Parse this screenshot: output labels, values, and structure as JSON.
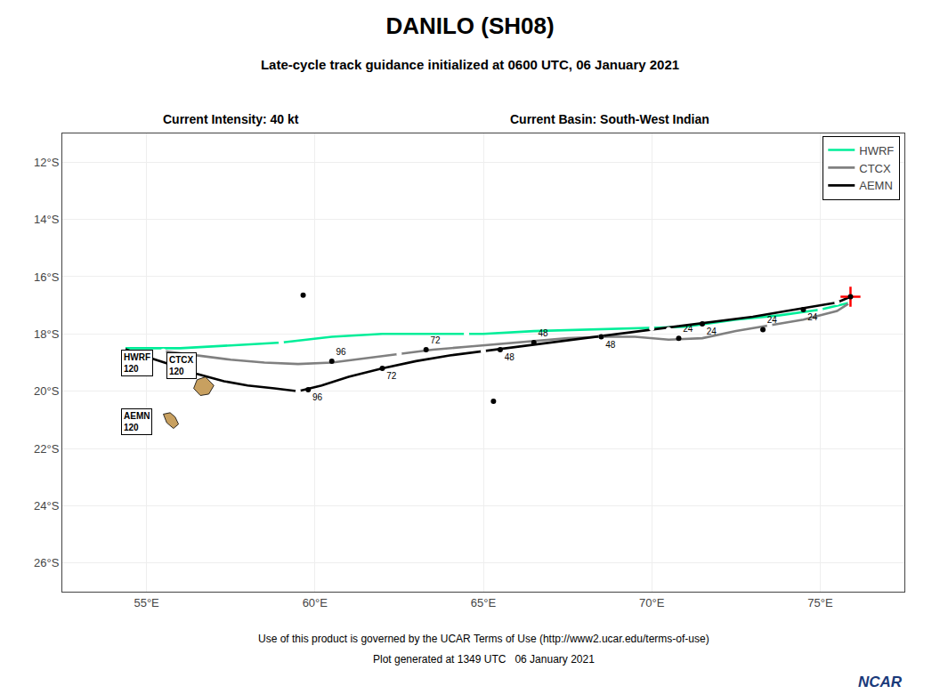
{
  "chart_data": {
    "type": "line",
    "title": "DANILO (SH08)",
    "subtitle": "Late-cycle track guidance initialized at 0600 UTC, 06 January 2021",
    "annotations": [
      "Current Intensity: 40 kt",
      "Current Basin: South-West Indian",
      "Use of this product is governed by the UCAR Terms of Use (http://www2.ucar.edu/terms-of-use)",
      "Plot generated at 1349 UTC   06 January 2021",
      {
        "text": "NCAR",
        "color": "#1a3a7a"
      },
      {
        "text": "HWRF\n120",
        "x": 54.25,
        "y": -18.55
      },
      {
        "text": "CTCX\n120",
        "x": 55.6,
        "y": -18.65
      },
      {
        "text": "AEMN\n120",
        "x": 54.25,
        "y": -20.6
      }
    ],
    "xlim": [
      52.5,
      77.5
    ],
    "ylim": [
      -27.0,
      -11.0
    ],
    "xticks": [
      {
        "value": 55,
        "label": "55°E"
      },
      {
        "value": 60,
        "label": "60°E"
      },
      {
        "value": 65,
        "label": "65°E"
      },
      {
        "value": 70,
        "label": "70°E"
      },
      {
        "value": 75,
        "label": "75°E"
      }
    ],
    "yticks": [
      {
        "value": -12,
        "label": "12°S"
      },
      {
        "value": -14,
        "label": "14°S"
      },
      {
        "value": -16,
        "label": "16°S"
      },
      {
        "value": -18,
        "label": "18°S"
      },
      {
        "value": -20,
        "label": "20°S"
      },
      {
        "value": -22,
        "label": "22°S"
      },
      {
        "value": -24,
        "label": "24°S"
      },
      {
        "value": -26,
        "label": "26°S"
      }
    ],
    "grid": true,
    "legend": "upper right",
    "series": [
      {
        "name": "HWRF",
        "type": "line",
        "color": "#00EE99",
        "x": [
          54.3,
          56.0,
          57.5,
          59.0,
          60.5,
          62.0,
          63.5,
          65.0,
          66.5,
          68.0,
          69.5,
          71.0,
          72.5,
          73.8,
          75.0,
          75.9
        ],
        "y": [
          -18.5,
          -18.5,
          -18.4,
          -18.3,
          -18.1,
          -18.0,
          -18.0,
          -18.0,
          -17.9,
          -17.85,
          -17.8,
          -17.75,
          -17.5,
          -17.35,
          -17.15,
          -16.9
        ]
      },
      {
        "name": "CTCX",
        "type": "line",
        "color": "#808080",
        "x": [
          55.5,
          56.5,
          57.5,
          58.5,
          59.5,
          60.5,
          61.5,
          62.5,
          63.5,
          64.5,
          65.5,
          66.5,
          67.5,
          68.5,
          69.5,
          70.5,
          71.5,
          72.5,
          73.5,
          74.5,
          75.5,
          75.9
        ],
        "y": [
          -18.6,
          -18.75,
          -18.9,
          -19.0,
          -19.05,
          -19.0,
          -18.85,
          -18.7,
          -18.55,
          -18.45,
          -18.35,
          -18.25,
          -18.15,
          -18.1,
          -18.1,
          -18.2,
          -18.15,
          -17.9,
          -17.7,
          -17.5,
          -17.2,
          -16.9
        ]
      },
      {
        "name": "AEMN",
        "type": "line",
        "color": "#000000",
        "x": [
          54.3,
          55.0,
          55.8,
          56.5,
          57.3,
          58.0,
          58.8,
          59.5,
          60.2,
          61.0,
          62.0,
          63.0,
          64.0,
          65.0,
          66.0,
          67.0,
          68.0,
          69.0,
          70.0,
          71.0,
          72.0,
          73.0,
          74.0,
          74.8,
          75.5,
          75.9
        ],
        "y": [
          -18.5,
          -18.8,
          -19.1,
          -19.4,
          -19.65,
          -19.8,
          -19.9,
          -20.0,
          -19.8,
          -19.5,
          -19.2,
          -18.95,
          -18.75,
          -18.6,
          -18.45,
          -18.3,
          -18.15,
          -18.0,
          -17.85,
          -17.7,
          -17.55,
          -17.4,
          -17.2,
          -17.05,
          -16.9,
          -16.7
        ]
      },
      {
        "type": "scatter",
        "marker": "circle",
        "color": "#ffffff",
        "x": [
          59.0,
          64.5,
          70.0,
          75.0
        ],
        "y": [
          -18.3,
          -18.0,
          -17.8,
          -17.15
        ]
      },
      {
        "type": "scatter",
        "marker": "circle",
        "color": "#ffffff",
        "x": [
          55.5,
          62.5,
          68.5,
          73.5,
          75.9
        ],
        "y": [
          -18.6,
          -18.7,
          -18.1,
          -17.7,
          -16.9
        ]
      },
      {
        "type": "scatter",
        "marker": "circle",
        "color": "#ffffff",
        "x": [
          54.3,
          59.5,
          65.0,
          70.5,
          75.5
        ],
        "y": [
          -18.5,
          -20.0,
          -18.6,
          -17.85,
          -16.9
        ]
      },
      {
        "type": "scatter",
        "marker": "circle",
        "color": "#000000",
        "x": [
          60.5,
          63.3,
          66.5,
          70.8,
          73.3
        ],
        "y": [
          -18.95,
          -18.55,
          -18.3,
          -18.15,
          -17.85
        ],
        "labels": [
          "96",
          "72",
          "48",
          "24",
          "24"
        ]
      },
      {
        "type": "scatter",
        "marker": "circle",
        "color": "#000000",
        "x": [
          59.8,
          62.0,
          65.5,
          68.5,
          71.5,
          74.5
        ],
        "y": [
          -19.95,
          -19.2,
          -18.55,
          -18.1,
          -17.65,
          -17.15
        ],
        "labels": [
          "96",
          "72",
          "48",
          "48",
          "24",
          "24"
        ]
      },
      {
        "type": "scatter",
        "marker": "cross",
        "color": "#ff0000",
        "x": [
          75.9
        ],
        "y": [
          -16.7
        ]
      },
      {
        "type": "scatter",
        "marker": "circle",
        "color": "#000000",
        "x": [
          75.9
        ],
        "y": [
          -16.7
        ]
      },
      {
        "type": "polygon",
        "color": "#C8A060",
        "x": [
          56.5,
          56.75,
          57.0,
          56.85,
          56.6,
          56.4,
          56.5
        ],
        "y": [
          -19.6,
          -19.5,
          -19.8,
          -20.1,
          -20.15,
          -19.9,
          -19.6
        ]
      },
      {
        "type": "polygon",
        "color": "#C8A060",
        "x": [
          55.5,
          55.7,
          55.85,
          55.95,
          55.8,
          55.6,
          55.5
        ],
        "y": [
          -20.8,
          -20.75,
          -20.9,
          -21.15,
          -21.3,
          -21.1,
          -20.8
        ]
      },
      {
        "type": "scatter",
        "marker": "circle",
        "color": "#000000",
        "x": [
          59.65
        ],
        "y": [
          -16.65
        ]
      },
      {
        "type": "scatter",
        "marker": "circle",
        "color": "#000000",
        "x": [
          65.3
        ],
        "y": [
          -20.35
        ]
      }
    ]
  }
}
